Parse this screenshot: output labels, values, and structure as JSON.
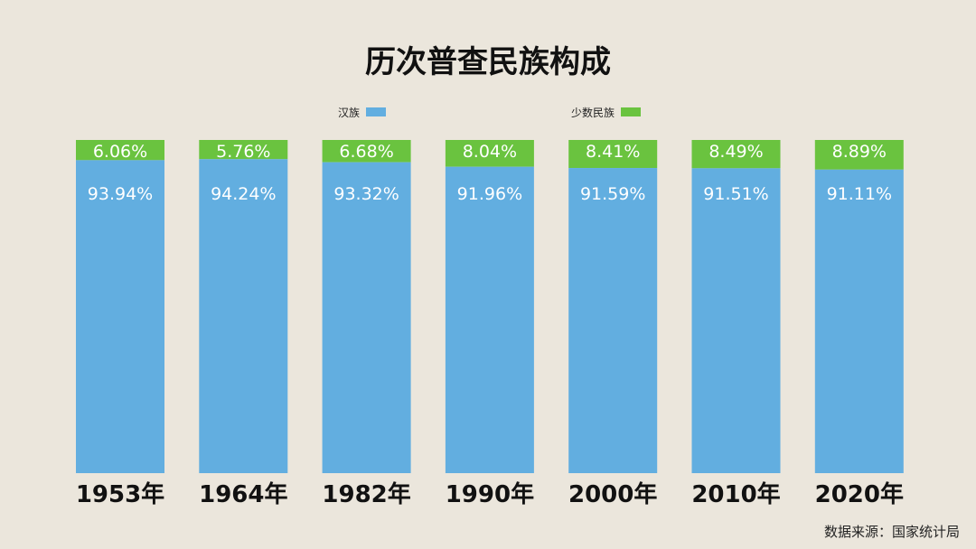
{
  "colors": {
    "background": "#ebe6dc",
    "han": "#62aee0",
    "minority": "#6ac33f"
  },
  "chart_data": {
    "type": "bar",
    "stacked": true,
    "normalized": true,
    "title": "历次普查民族构成",
    "categories": [
      "1953年",
      "1964年",
      "1982年",
      "1990年",
      "2000年",
      "2010年",
      "2020年"
    ],
    "series": [
      {
        "name": "汉族",
        "color": "#62aee0",
        "values": [
          93.94,
          94.24,
          93.32,
          91.96,
          91.59,
          91.51,
          91.11
        ],
        "labels": [
          "93.94%",
          "94.24%",
          "93.32%",
          "91.96%",
          "91.59%",
          "91.51%",
          "91.11%"
        ]
      },
      {
        "name": "少数民族",
        "color": "#6ac33f",
        "values": [
          6.06,
          5.76,
          6.68,
          8.04,
          8.41,
          8.49,
          8.89
        ],
        "labels": [
          "6.06%",
          "5.76%",
          "6.68%",
          "8.04%",
          "8.41%",
          "8.49%",
          "8.89%"
        ]
      }
    ],
    "ylim": [
      0,
      100
    ],
    "grid": false,
    "legend_position": "top"
  },
  "source": "数据来源：国家统计局"
}
